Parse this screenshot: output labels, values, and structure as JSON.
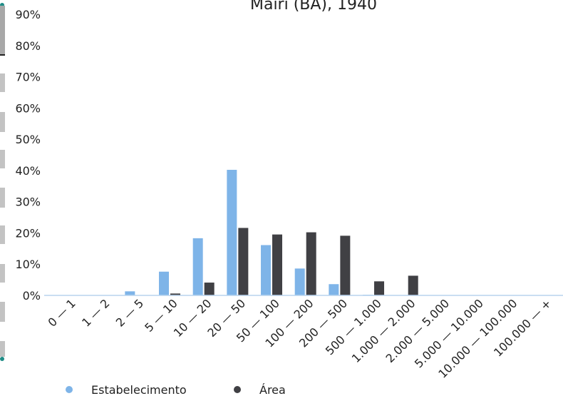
{
  "chart_data": {
    "type": "bar",
    "title": "Mairi (BA), 1940",
    "xlabel": "",
    "ylabel": "",
    "ylim": [
      0,
      90
    ],
    "yticks": [
      "0%",
      "10%",
      "20%",
      "30%",
      "40%",
      "50%",
      "60%",
      "70%",
      "80%",
      "90%"
    ],
    "categories": [
      "0 — 1",
      "1 — 2",
      "2 — 5",
      "5 — 10",
      "10 — 20",
      "20 — 50",
      "50 — 100",
      "100 — 200",
      "200 — 500",
      "500 — 1.000",
      "1.000 — 2.000",
      "2.000 — 5.000",
      "5.000 — 10.000",
      "10.000 — 100.000",
      "100.000 — +"
    ],
    "series": [
      {
        "name": "Estabelecimento",
        "color": "#7eb4e8",
        "values": [
          0,
          0,
          1.3,
          7.6,
          18.3,
          40.2,
          16.1,
          8.6,
          3.6,
          0.2,
          0.1,
          0,
          0,
          0,
          0
        ]
      },
      {
        "name": "Área",
        "color": "#404044",
        "values": [
          0,
          0,
          0,
          0.6,
          4.1,
          21.6,
          19.5,
          20.2,
          19.1,
          4.5,
          6.3,
          0,
          0,
          0,
          0
        ]
      }
    ],
    "legend_position": "bottom-left",
    "grid": false
  }
}
